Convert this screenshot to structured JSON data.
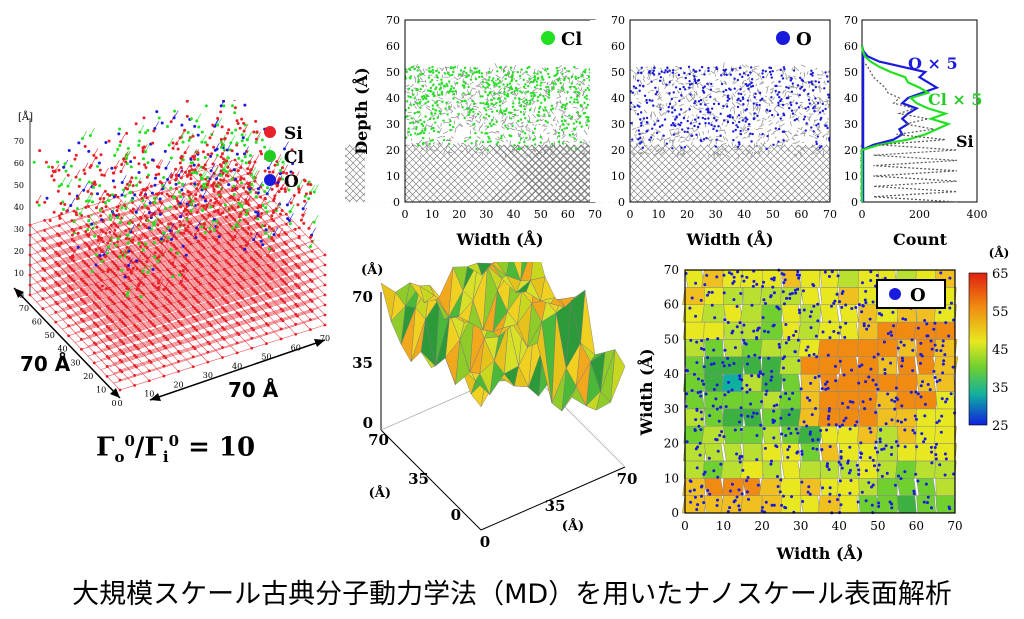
{
  "caption": "大規模スケール古典分子動力学法（MD）を用いたナノスケール表面解析",
  "ratio": {
    "gamma": "Γ",
    "sub_o": "o",
    "sup": "0",
    "slash": "/",
    "sub_i": "i",
    "rhs": "= 10"
  },
  "model3d": {
    "axis_unit": "[Å]",
    "z_ticks": [
      "0",
      "10",
      "20",
      "30",
      "40",
      "50",
      "60",
      "70"
    ],
    "x_ticks": [
      "0",
      "10",
      "20",
      "30",
      "40",
      "50",
      "60",
      "70"
    ],
    "y_ticks": [
      "0",
      "10",
      "20",
      "30",
      "40",
      "50",
      "60",
      "70"
    ],
    "legend": [
      {
        "label": "Si",
        "color": "#e8202a"
      },
      {
        "label": "Cl",
        "color": "#22cc22"
      },
      {
        "label": "O",
        "color": "#1a1adc"
      }
    ],
    "dim_left": "70 Å",
    "dim_right": "70 Å"
  },
  "colors": {
    "si": "#e8202a",
    "cl": "#22e022",
    "o": "#1a1adc",
    "gray": "#8a8a8a"
  },
  "chart_data": [
    {
      "type": "scatter",
      "title": "Cl",
      "xlabel": "Width (Å)",
      "ylabel": "Depth (Å)",
      "xlim": [
        0,
        70
      ],
      "ylim": [
        0,
        70
      ],
      "x_ticks": [
        "0",
        "10",
        "20",
        "30",
        "40",
        "50",
        "60",
        "70"
      ],
      "y_ticks": [
        "0",
        "10",
        "20",
        "30",
        "40",
        "50",
        "60",
        "70"
      ],
      "legend": [
        {
          "label": "Cl",
          "color": "#22e022"
        }
      ]
    },
    {
      "type": "scatter",
      "title": "O",
      "xlabel": "Width (Å)",
      "xlim": [
        0,
        70
      ],
      "ylim": [
        0,
        70
      ],
      "x_ticks": [
        "0",
        "10",
        "20",
        "30",
        "40",
        "50",
        "60",
        "70"
      ],
      "y_ticks": [
        "0",
        "10",
        "20",
        "30",
        "40",
        "50",
        "60",
        "70"
      ],
      "legend": [
        {
          "label": "O",
          "color": "#1a1adc"
        }
      ]
    },
    {
      "type": "line",
      "xlabel": "Count",
      "xlim": [
        0,
        400
      ],
      "ylim": [
        0,
        70
      ],
      "x_ticks": [
        "0",
        "200",
        "400"
      ],
      "y_ticks": [
        "0",
        "10",
        "20",
        "30",
        "40",
        "50",
        "60",
        "70"
      ],
      "series": [
        {
          "name": "O × 5",
          "color": "#1a1adc",
          "y": [
            0,
            5,
            10,
            15,
            20,
            22,
            24,
            26,
            28,
            30,
            32,
            34,
            36,
            38,
            40,
            42,
            44,
            46,
            48,
            50,
            52,
            54,
            56,
            58,
            60
          ],
          "x": [
            0,
            0,
            0,
            0,
            0,
            40,
            110,
            140,
            130,
            160,
            140,
            160,
            190,
            140,
            160,
            210,
            260,
            230,
            200,
            220,
            140,
            60,
            20,
            5,
            0
          ]
        },
        {
          "name": "Cl × 5",
          "color": "#22e022",
          "y": [
            0,
            5,
            10,
            15,
            20,
            22,
            24,
            26,
            28,
            30,
            32,
            34,
            36,
            38,
            40,
            42,
            44,
            46,
            48,
            50,
            52,
            54,
            56,
            58,
            60
          ],
          "x": [
            0,
            0,
            0,
            0,
            0,
            60,
            160,
            220,
            260,
            300,
            240,
            290,
            230,
            190,
            170,
            230,
            200,
            160,
            150,
            100,
            60,
            30,
            10,
            3,
            0
          ]
        },
        {
          "name": "Si",
          "color": "#555555",
          "y": [
            0,
            2,
            4,
            6,
            8,
            10,
            12,
            14,
            16,
            18,
            20,
            22,
            24,
            26,
            28,
            30,
            32,
            34,
            36,
            38,
            40,
            42,
            44,
            46,
            48,
            50,
            52,
            54
          ],
          "x": [
            330,
            40,
            330,
            40,
            330,
            40,
            330,
            40,
            330,
            40,
            330,
            60,
            290,
            120,
            250,
            150,
            230,
            130,
            180,
            110,
            130,
            90,
            80,
            60,
            40,
            30,
            20,
            5
          ]
        }
      ]
    },
    {
      "type": "area",
      "title": "",
      "unit": "(Å)",
      "z_ticks": [
        "0",
        "35",
        "70"
      ],
      "x_ticks": [
        "0",
        "35",
        "70"
      ],
      "y_ticks": [
        "0",
        "35",
        "70"
      ],
      "y_unit": "(Å)",
      "x_unit": "(Å)"
    },
    {
      "type": "heatmap",
      "xlabel": "Width (Å)",
      "ylabel": "Width (Å)",
      "xlim": [
        0,
        70
      ],
      "ylim": [
        0,
        70
      ],
      "x_ticks": [
        "0",
        "10",
        "20",
        "30",
        "40",
        "50",
        "60",
        "70"
      ],
      "y_ticks": [
        "0",
        "10",
        "20",
        "30",
        "40",
        "50",
        "60",
        "70"
      ],
      "legend": [
        {
          "label": "O",
          "color": "#1a1adc"
        }
      ],
      "colorbar": {
        "unit": "(Å)",
        "ticks": [
          "65",
          "55",
          "45",
          "35",
          "25"
        ],
        "min": 25,
        "max": 65
      }
    }
  ]
}
